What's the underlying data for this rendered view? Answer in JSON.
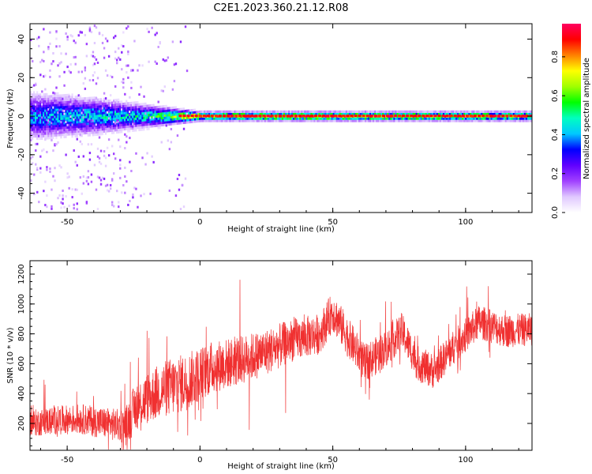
{
  "title": "C2E1.2023.360.21.12.R08",
  "colorbar": {
    "label": "Normalized spectral amplitude",
    "ticks": [
      0.0,
      0.2,
      0.4,
      0.6,
      0.8
    ],
    "tick_labels": [
      "0.0",
      "0.2",
      "0.4",
      "0.6",
      "0.8"
    ],
    "range": [
      0,
      0.97
    ],
    "colormap": [
      "#ffffff",
      "#e0c8ff",
      "#a040ff",
      "#6000ff",
      "#0000ff",
      "#00c8ff",
      "#00ffc0",
      "#00ff00",
      "#a0ff00",
      "#ffff00",
      "#ff8000",
      "#ff0000",
      "#ff0060"
    ]
  },
  "chart_data": [
    {
      "type": "heatmap",
      "xlabel": "Height of straight line (km)",
      "ylabel": "Frequency (Hz)",
      "xlim": [
        -64,
        125
      ],
      "ylim": [
        -50,
        48
      ],
      "xticks": [
        -50,
        0,
        50,
        100
      ],
      "yticks": [
        -40,
        -20,
        0,
        20,
        40
      ],
      "xtick_labels": [
        "-50",
        "0",
        "50",
        "100"
      ],
      "ytick_labels": [
        "-40",
        "-20",
        "0",
        "20",
        "40"
      ],
      "description_points": [
        {
          "x": -60,
          "spread": 10,
          "peak": 0.45
        },
        {
          "x": -40,
          "spread": 8,
          "peak": 0.5
        },
        {
          "x": -20,
          "spread": 5,
          "peak": 0.55
        },
        {
          "x": 0,
          "spread": 2,
          "peak": 0.9
        },
        {
          "x": 50,
          "spread": 2,
          "peak": 0.95
        },
        {
          "x": 100,
          "spread": 2,
          "peak": 0.9
        },
        {
          "x": 125,
          "spread": 2,
          "peak": 0.85
        }
      ]
    },
    {
      "type": "line",
      "xlabel": "Height of straight line (km)",
      "ylabel": "SNR (10 * v/v)",
      "xlim": [
        -64,
        125
      ],
      "ylim": [
        20,
        1290
      ],
      "xticks": [
        -50,
        0,
        50,
        100
      ],
      "yticks": [
        200,
        400,
        600,
        800,
        1000,
        1200
      ],
      "xtick_labels": [
        "-50",
        "0",
        "50",
        "100"
      ],
      "ytick_labels": [
        "200",
        "400",
        "600",
        "800",
        "1000",
        "1200"
      ],
      "series": [
        {
          "color": "#f03030",
          "envelope": [
            {
              "x": -64,
              "y": 200
            },
            {
              "x": -55,
              "y": 220
            },
            {
              "x": -45,
              "y": 230
            },
            {
              "x": -35,
              "y": 200
            },
            {
              "x": -28,
              "y": 180
            },
            {
              "x": -24,
              "y": 320
            },
            {
              "x": -15,
              "y": 420
            },
            {
              "x": -5,
              "y": 480
            },
            {
              "x": 5,
              "y": 580
            },
            {
              "x": 15,
              "y": 620
            },
            {
              "x": 25,
              "y": 680
            },
            {
              "x": 35,
              "y": 760
            },
            {
              "x": 45,
              "y": 800
            },
            {
              "x": 50,
              "y": 950
            },
            {
              "x": 55,
              "y": 800
            },
            {
              "x": 62,
              "y": 600
            },
            {
              "x": 70,
              "y": 700
            },
            {
              "x": 76,
              "y": 820
            },
            {
              "x": 82,
              "y": 600
            },
            {
              "x": 88,
              "y": 550
            },
            {
              "x": 95,
              "y": 700
            },
            {
              "x": 105,
              "y": 880
            },
            {
              "x": 115,
              "y": 820
            },
            {
              "x": 125,
              "y": 830
            }
          ],
          "noise": [
            {
              "x": -64,
              "amp": 90
            },
            {
              "x": -30,
              "amp": 110
            },
            {
              "x": -25,
              "amp": 160
            },
            {
              "x": -10,
              "amp": 200
            },
            {
              "x": 10,
              "amp": 170
            },
            {
              "x": 40,
              "amp": 140
            },
            {
              "x": 80,
              "amp": 120
            },
            {
              "x": 125,
              "amp": 110
            }
          ]
        }
      ]
    }
  ]
}
